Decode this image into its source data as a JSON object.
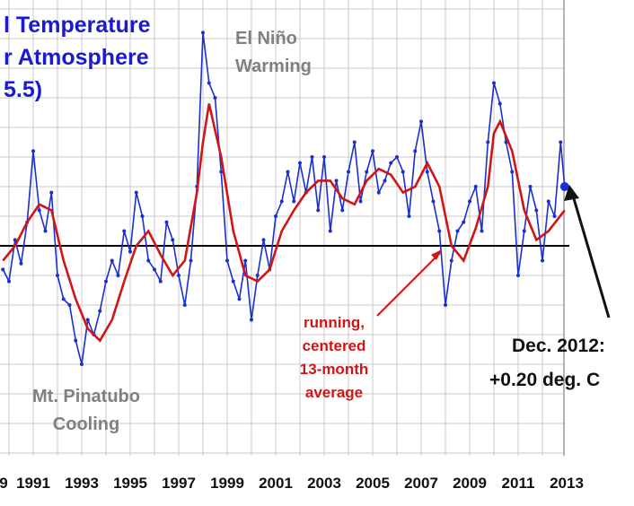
{
  "chart_data": {
    "type": "line",
    "title_lines": [
      "l Temperature",
      "r Atmosphere",
      "5.5)"
    ],
    "xlabel": "",
    "ylabel": "",
    "x_ticks": [
      "9",
      "1991",
      "1993",
      "1995",
      "1997",
      "1999",
      "2001",
      "2003",
      "2005",
      "2007",
      "2009",
      "2011",
      "2013"
    ],
    "xlim": [
      1989.7,
      2013
    ],
    "ylim": [
      -0.75,
      0.75
    ],
    "grid": true,
    "series": [
      {
        "kind": "monthly",
        "color": "#1a2fd0",
        "x": [
          1989.75,
          1990.0,
          1990.25,
          1990.5,
          1990.75,
          1991.0,
          1991.25,
          1991.5,
          1991.75,
          1992.0,
          1992.25,
          1992.5,
          1992.75,
          1993.0,
          1993.25,
          1993.5,
          1993.75,
          1994.0,
          1994.25,
          1994.5,
          1994.75,
          1995.0,
          1995.25,
          1995.5,
          1995.75,
          1996.0,
          1996.25,
          1996.5,
          1996.75,
          1997.0,
          1997.25,
          1997.5,
          1997.75,
          1998.0,
          1998.25,
          1998.5,
          1998.75,
          1999.0,
          1999.25,
          1999.5,
          1999.75,
          2000.0,
          2000.25,
          2000.5,
          2000.75,
          2001.0,
          2001.25,
          2001.5,
          2001.75,
          2002.0,
          2002.25,
          2002.5,
          2002.75,
          2003.0,
          2003.25,
          2003.5,
          2003.75,
          2004.0,
          2004.25,
          2004.5,
          2004.75,
          2005.0,
          2005.25,
          2005.5,
          2005.75,
          2006.0,
          2006.25,
          2006.5,
          2006.75,
          2007.0,
          2007.25,
          2007.5,
          2007.75,
          2008.0,
          2008.25,
          2008.5,
          2008.75,
          2009.0,
          2009.25,
          2009.5,
          2009.75,
          2010.0,
          2010.25,
          2010.5,
          2010.75,
          2011.0,
          2011.25,
          2011.5,
          2011.75,
          2012.0,
          2012.25,
          2012.5,
          2012.75,
          2012.92
        ],
        "y": [
          -0.08,
          -0.12,
          0.02,
          -0.06,
          0.08,
          0.32,
          0.12,
          0.05,
          0.18,
          -0.1,
          -0.18,
          -0.2,
          -0.32,
          -0.4,
          -0.25,
          -0.3,
          -0.22,
          -0.12,
          -0.05,
          -0.1,
          0.05,
          -0.02,
          0.18,
          0.1,
          -0.05,
          -0.08,
          -0.12,
          0.08,
          0.02,
          -0.1,
          -0.2,
          -0.05,
          0.2,
          0.72,
          0.55,
          0.5,
          0.25,
          -0.05,
          -0.12,
          -0.18,
          -0.05,
          -0.25,
          -0.1,
          0.02,
          -0.08,
          0.1,
          0.15,
          0.25,
          0.15,
          0.28,
          0.18,
          0.3,
          0.12,
          0.3,
          0.05,
          0.22,
          0.12,
          0.25,
          0.35,
          0.15,
          0.25,
          0.32,
          0.18,
          0.22,
          0.28,
          0.3,
          0.25,
          0.1,
          0.32,
          0.42,
          0.25,
          0.15,
          0.05,
          -0.2,
          -0.05,
          0.05,
          0.08,
          0.15,
          0.2,
          0.05,
          0.35,
          0.55,
          0.48,
          0.35,
          0.25,
          -0.1,
          0.05,
          0.2,
          0.12,
          -0.05,
          0.15,
          0.1,
          0.35,
          0.2
        ]
      },
      {
        "kind": "running_mean",
        "name": "running, centered 13-month average",
        "color": "#d01515",
        "x": [
          1989.75,
          1990.25,
          1990.75,
          1991.25,
          1991.75,
          1992.25,
          1992.75,
          1993.25,
          1993.75,
          1994.25,
          1994.75,
          1995.25,
          1995.75,
          1996.25,
          1996.75,
          1997.25,
          1997.75,
          1998.0,
          1998.25,
          1998.75,
          1999.25,
          1999.75,
          2000.25,
          2000.75,
          2001.25,
          2001.75,
          2002.25,
          2002.75,
          2003.25,
          2003.75,
          2004.25,
          2004.75,
          2005.25,
          2005.75,
          2006.25,
          2006.75,
          2007.25,
          2007.75,
          2008.25,
          2008.75,
          2009.25,
          2009.75,
          2010.0,
          2010.25,
          2010.75,
          2011.25,
          2011.75,
          2012.25,
          2012.92
        ],
        "y": [
          -0.05,
          0.0,
          0.08,
          0.14,
          0.12,
          -0.05,
          -0.18,
          -0.28,
          -0.32,
          -0.25,
          -0.12,
          0.0,
          0.05,
          -0.03,
          -0.1,
          -0.05,
          0.18,
          0.35,
          0.48,
          0.3,
          0.05,
          -0.1,
          -0.12,
          -0.08,
          0.05,
          0.12,
          0.18,
          0.22,
          0.22,
          0.16,
          0.14,
          0.22,
          0.26,
          0.24,
          0.18,
          0.2,
          0.28,
          0.2,
          0.0,
          -0.05,
          0.06,
          0.2,
          0.38,
          0.42,
          0.32,
          0.12,
          0.02,
          0.05,
          0.12
        ]
      }
    ],
    "zero_line": 0,
    "last_point": {
      "x": 2012.92,
      "y": 0.2
    },
    "annotations": {
      "el_nino": [
        "El Niño",
        "Warming"
      ],
      "pinatubo": [
        "Mt. Pinatubo",
        "Cooling"
      ],
      "running": [
        "running,",
        "centered",
        "13-month",
        "average"
      ],
      "latest": [
        "Dec. 2012:",
        "+0.20 deg. C"
      ]
    },
    "colors": {
      "monthly": "#1a2fd0",
      "running": "#d01515",
      "title": "#1a1ad0",
      "grid": "#c8c8c8",
      "zero": "#000000"
    }
  }
}
